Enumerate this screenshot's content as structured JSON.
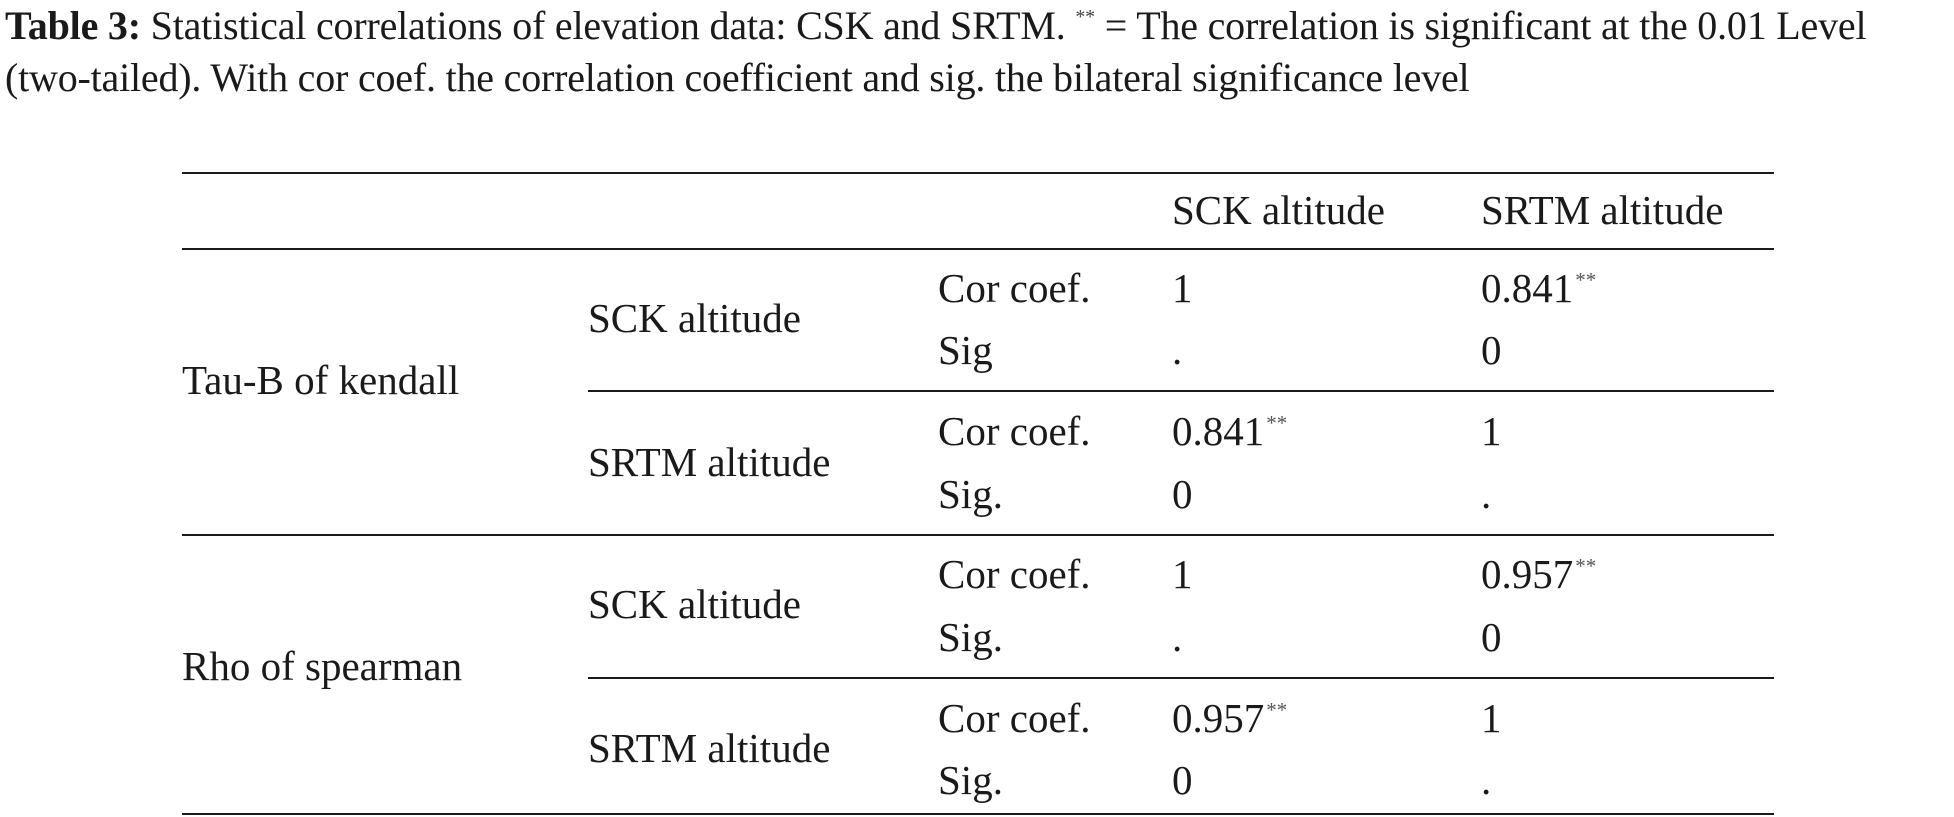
{
  "caption": {
    "label": "Table 3:",
    "text_before_mark": " Statistical correlations of elevation data: CSK and SRTM. ",
    "mark": "**",
    "text_after_mark": " = The correlation is significant at the 0.01 Level (two-tailed). With cor coef. the correlation coefficient and sig. the bilateral significance level"
  },
  "table": {
    "headers": [
      "SCK altitude",
      "SRTM altitude"
    ],
    "groups": [
      {
        "method": "Tau-B of kendall",
        "rows": [
          {
            "variable": "SCK altitude",
            "stat_labels": [
              "Cor coef.",
              "Sig"
            ],
            "sck": {
              "coef": "1",
              "coef_mark": "",
              "sig": "."
            },
            "srtm": {
              "coef": "0.841",
              "coef_mark": "**",
              "sig": "0"
            }
          },
          {
            "variable": "SRTM altitude",
            "stat_labels": [
              "Cor coef.",
              "Sig."
            ],
            "sck": {
              "coef": "0.841",
              "coef_mark": "**",
              "sig": "0"
            },
            "srtm": {
              "coef": "1",
              "coef_mark": "",
              "sig": "."
            }
          }
        ]
      },
      {
        "method": "Rho of spearman",
        "rows": [
          {
            "variable": "SCK altitude",
            "stat_labels": [
              "Cor coef.",
              "Sig."
            ],
            "sck": {
              "coef": "1",
              "coef_mark": "",
              "sig": "."
            },
            "srtm": {
              "coef": "0.957",
              "coef_mark": "**",
              "sig": "0"
            }
          },
          {
            "variable": "SRTM altitude",
            "stat_labels": [
              "Cor coef.",
              "Sig."
            ],
            "sck": {
              "coef": "0.957",
              "coef_mark": "**",
              "sig": "0"
            },
            "srtm": {
              "coef": "1",
              "coef_mark": "",
              "sig": "."
            }
          }
        ]
      }
    ]
  }
}
